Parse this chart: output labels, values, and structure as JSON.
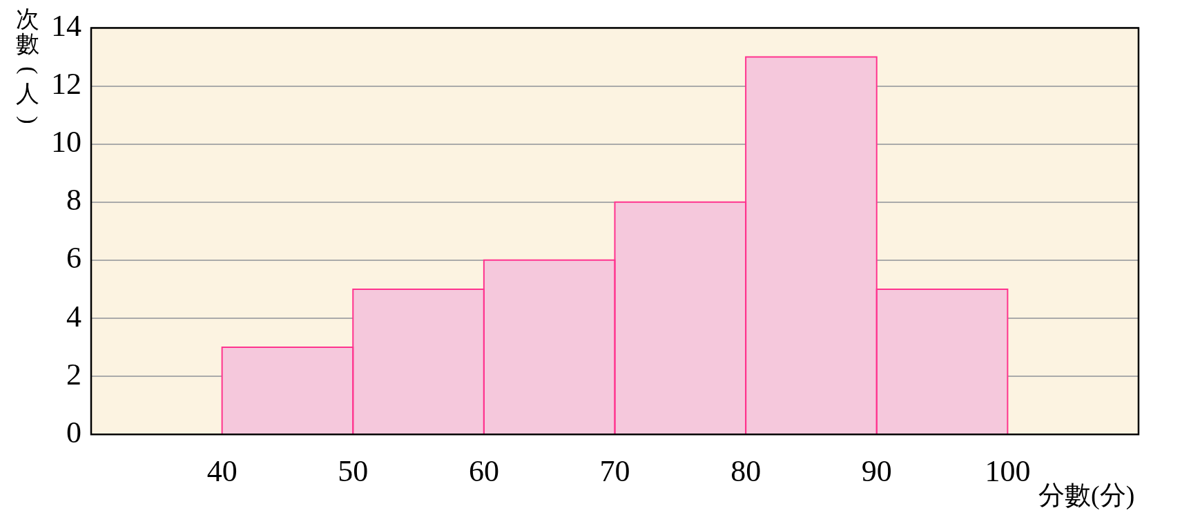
{
  "chart_data": {
    "type": "histogram",
    "xlabel": "分數(分)",
    "ylabel": "次數(人)",
    "bins": [
      40,
      50,
      60,
      70,
      80,
      90,
      100
    ],
    "values": [
      3,
      5,
      6,
      8,
      13,
      5
    ],
    "color": "#f5c8dc",
    "xlim": [
      30,
      110
    ],
    "xticks": [
      40,
      50,
      60,
      70,
      80,
      90,
      100
    ],
    "ylim": [
      0,
      14
    ],
    "yticks": [
      0,
      2,
      4,
      6,
      8,
      10,
      12,
      14
    ],
    "grid": "y",
    "legend": false
  }
}
